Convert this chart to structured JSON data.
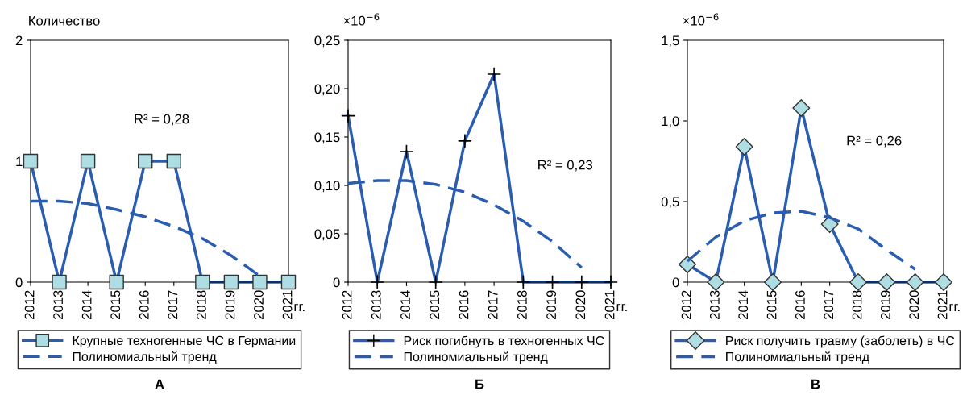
{
  "chart_data": [
    {
      "type": "line",
      "ylabel": "Количество",
      "xlabel": "гг.",
      "categories": [
        "2012",
        "2013",
        "2014",
        "2015",
        "2016",
        "2017",
        "2018",
        "2019",
        "2020",
        "2021"
      ],
      "ylim": [
        0,
        2
      ],
      "yticks": [
        0,
        1,
        2
      ],
      "grid": false,
      "legend": "bottom",
      "annotations": [
        "R² = 0,28",
        "А"
      ],
      "series": [
        {
          "name": "Крупные техногенные ЧС в Германии",
          "color": "#2a5db0",
          "marker": "square",
          "line_style": "solid",
          "values": [
            1,
            0,
            1,
            0,
            1,
            1,
            0,
            0,
            0,
            0
          ]
        },
        {
          "name": "Полиномиальный тренд",
          "color": "#2a5db0",
          "marker": "none",
          "line_style": "dashed",
          "values": [
            0.67,
            0.67,
            0.65,
            0.6,
            0.54,
            0.46,
            0.36,
            0.22,
            0.05,
            null
          ]
        }
      ]
    },
    {
      "type": "line",
      "ylabel": "×10$^{−6}$",
      "xlabel": "гг.",
      "categories": [
        "2012",
        "2013",
        "2014",
        "2015",
        "2016",
        "2017",
        "2018",
        "2019",
        "2020",
        "2021"
      ],
      "ylim": [
        0,
        0.25
      ],
      "yticks": [
        0,
        {
          "value": 0.05,
          "label": "0,05"
        },
        {
          "value": 0.1,
          "label": "0,10"
        },
        {
          "value": 0.15,
          "label": "0,15"
        },
        {
          "value": 0.2,
          "label": "0,20"
        },
        {
          "value": 0.25,
          "label": "0,25"
        }
      ],
      "grid": false,
      "legend": "bottom",
      "annotations": [
        "R² = 0,23",
        "Б"
      ],
      "series": [
        {
          "name": "Риск погибнуть в техногенных ЧС",
          "color": "#2a5db0",
          "marker": "cross",
          "line_style": "solid",
          "values": [
            0.172,
            0,
            0.135,
            0,
            0.146,
            0.215,
            0,
            0,
            0,
            0
          ]
        },
        {
          "name": "Полиномиальный тренд",
          "color": "#2a5db0",
          "marker": "none",
          "line_style": "dashed",
          "values": [
            0.102,
            0.105,
            0.105,
            0.101,
            0.093,
            0.08,
            0.063,
            0.042,
            0.015,
            null
          ]
        }
      ]
    },
    {
      "type": "line",
      "ylabel": "×10$^{−6}$",
      "xlabel": "гг.",
      "categories": [
        "2012",
        "2013",
        "2014",
        "2015",
        "2016",
        "2017",
        "2018",
        "2019",
        "2020",
        "2021"
      ],
      "ylim": [
        0,
        1.5
      ],
      "yticks": [
        0,
        {
          "value": 0.5,
          "label": "0,5"
        },
        {
          "value": 1.0,
          "label": "1,0"
        },
        {
          "value": 1.5,
          "label": "1,5"
        }
      ],
      "grid": false,
      "legend": "bottom",
      "annotations": [
        "R² = 0,26",
        "В"
      ],
      "series": [
        {
          "name": "Риск получить травму (заболеть) в ЧС",
          "color": "#2a5db0",
          "marker": "diamond",
          "line_style": "solid",
          "values": [
            0.11,
            0,
            0.84,
            0,
            1.08,
            0.36,
            0,
            0,
            0,
            0
          ]
        },
        {
          "name": "Полиномиальный тренд",
          "color": "#2a5db0",
          "marker": "none",
          "line_style": "dashed",
          "values": [
            0.13,
            0.28,
            0.38,
            0.43,
            0.44,
            0.4,
            0.33,
            0.2,
            0.08,
            null
          ]
        }
      ]
    }
  ]
}
